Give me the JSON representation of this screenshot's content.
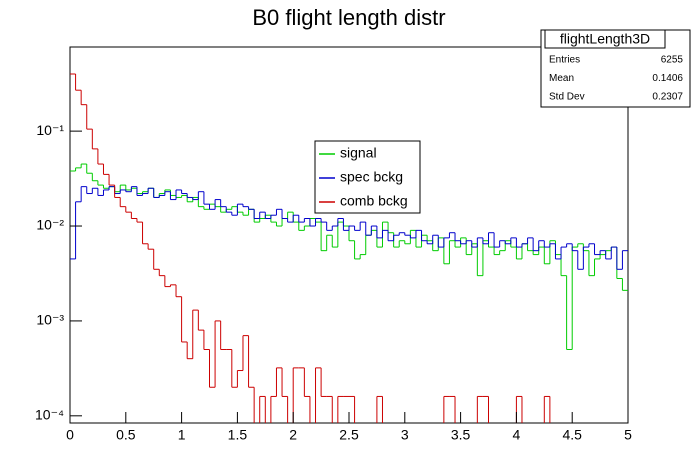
{
  "chart_data": {
    "type": "histogram",
    "title": "B0 flight length distr",
    "log_y": true,
    "grid": false,
    "xlim": [
      0,
      5
    ],
    "ylim": [
      8.4e-05,
      0.77
    ],
    "xticks": [
      0,
      0.5,
      1,
      1.5,
      2,
      2.5,
      3,
      3.5,
      4,
      4.5,
      5
    ],
    "yticks": [
      {
        "value": 0.0001,
        "label": "10⁻⁴"
      },
      {
        "value": 0.001,
        "label": "10⁻³"
      },
      {
        "value": 0.01,
        "label": "10⁻²"
      },
      {
        "value": 0.1,
        "label": "10⁻¹"
      }
    ],
    "bins": [
      0,
      0.05,
      0.1,
      0.15,
      0.2,
      0.25,
      0.3,
      0.35,
      0.4,
      0.45,
      0.5,
      0.55,
      0.6,
      0.65,
      0.7,
      0.75,
      0.8,
      0.85,
      0.9,
      0.95,
      1,
      1.05,
      1.1,
      1.15,
      1.2,
      1.25,
      1.3,
      1.35,
      1.4,
      1.45,
      1.5,
      1.55,
      1.6,
      1.65,
      1.7,
      1.75,
      1.8,
      1.85,
      1.9,
      1.95,
      2,
      2.05,
      2.1,
      2.15,
      2.2,
      2.25,
      2.3,
      2.35,
      2.4,
      2.45,
      2.5,
      2.55,
      2.6,
      2.65,
      2.7,
      2.75,
      2.8,
      2.85,
      2.9,
      2.95,
      3,
      3.05,
      3.1,
      3.15,
      3.2,
      3.25,
      3.3,
      3.35,
      3.4,
      3.45,
      3.5,
      3.55,
      3.6,
      3.65,
      3.7,
      3.75,
      3.8,
      3.85,
      3.9,
      3.95,
      4,
      4.05,
      4.1,
      4.15,
      4.2,
      4.25,
      4.3,
      4.35,
      4.4,
      4.45,
      4.5,
      4.55,
      4.6,
      4.65,
      4.7,
      4.75,
      4.8,
      4.85,
      4.9,
      4.95,
      5
    ],
    "series": [
      {
        "name": "signal",
        "color": "#00cc00",
        "values": [
          0.038,
          0.041,
          0.045,
          0.036,
          0.03,
          0.027,
          0.025,
          0.026,
          0.023,
          0.027,
          0.024,
          0.025,
          0.022,
          0.023,
          0.025,
          0.02,
          0.022,
          0.024,
          0.021,
          0.02,
          0.021,
          0.018,
          0.02,
          0.016,
          0.015,
          0.017,
          0.016,
          0.014,
          0.015,
          0.016,
          0.014,
          0.013,
          0.015,
          0.011,
          0.012,
          0.013,
          0.011,
          0.01,
          0.012,
          0.014,
          0.011,
          0.009,
          0.01,
          0.012,
          0.011,
          0.0055,
          0.008,
          0.006,
          0.011,
          0.01,
          0.007,
          0.0045,
          0.005,
          0.008,
          0.009,
          0.006,
          0.011,
          0.0085,
          0.006,
          0.007,
          0.0065,
          0.009,
          0.006,
          0.008,
          0.007,
          0.0055,
          0.0075,
          0.004,
          0.007,
          0.006,
          0.0075,
          0.005,
          0.0065,
          0.003,
          0.007,
          0.006,
          0.005,
          0.0055,
          0.007,
          0.006,
          0.0045,
          0.0065,
          0.0055,
          0.005,
          0.006,
          0.004,
          0.007,
          0.005,
          0.003,
          0.0005,
          0.006,
          0.0065,
          0.0055,
          0.003,
          0.0045,
          0.005,
          0.0055,
          0.006,
          0.0028,
          0.0021
        ]
      },
      {
        "name": "spec bckg",
        "color": "#0000cc",
        "values": [
          0.0045,
          0.018,
          0.026,
          0.022,
          0.025,
          0.021,
          0.024,
          0.026,
          0.022,
          0.024,
          0.023,
          0.026,
          0.021,
          0.022,
          0.025,
          0.02,
          0.021,
          0.023,
          0.019,
          0.024,
          0.022,
          0.02,
          0.019,
          0.023,
          0.017,
          0.015,
          0.019,
          0.016,
          0.014,
          0.013,
          0.017,
          0.016,
          0.015,
          0.012,
          0.014,
          0.012,
          0.013,
          0.015,
          0.012,
          0.011,
          0.013,
          0.011,
          0.012,
          0.01,
          0.012,
          0.011,
          0.009,
          0.01,
          0.012,
          0.009,
          0.01,
          0.009,
          0.011,
          0.008,
          0.01,
          0.0075,
          0.009,
          0.007,
          0.008,
          0.0085,
          0.008,
          0.0075,
          0.009,
          0.007,
          0.0065,
          0.008,
          0.006,
          0.0075,
          0.0085,
          0.007,
          0.0065,
          0.007,
          0.006,
          0.0075,
          0.0065,
          0.0085,
          0.006,
          0.007,
          0.0065,
          0.0075,
          0.006,
          0.0065,
          0.0075,
          0.0055,
          0.007,
          0.006,
          0.0065,
          0.0045,
          0.006,
          0.0065,
          0.0055,
          0.0035,
          0.006,
          0.0065,
          0.005,
          0.0055,
          0.0045,
          0.006,
          0.0035,
          0.0055
        ]
      },
      {
        "name": "comb bckg",
        "color": "#cc0000",
        "values": [
          0.4,
          0.27,
          0.19,
          0.105,
          0.065,
          0.045,
          0.035,
          0.027,
          0.02,
          0.016,
          0.014,
          0.012,
          0.011,
          0.0065,
          0.0057,
          0.0035,
          0.003,
          0.0023,
          0.0024,
          0.0018,
          0.0006,
          0.0004,
          0.0013,
          0.0008,
          0.0005,
          0.0002,
          0.001,
          0.0005,
          0.0005,
          0.0002,
          0.0003,
          0.0007,
          0.0002,
          0,
          0.00016,
          0,
          0.00016,
          0.00032,
          0.00016,
          0,
          0.00032,
          0.00032,
          0.00016,
          0,
          0.00032,
          0.00016,
          0.00016,
          0,
          0.00016,
          0.00016,
          0.00016,
          0,
          0,
          0,
          0,
          0.00016,
          0,
          0,
          0,
          0,
          0,
          0,
          0,
          0,
          0,
          0,
          0,
          0.00016,
          0.00016,
          0,
          0,
          0,
          0,
          0.00016,
          0.00016,
          0,
          0,
          0,
          0,
          0,
          0.00016,
          0,
          0,
          0,
          0,
          0.00016,
          0,
          0,
          0,
          0,
          0,
          0,
          0,
          0,
          0,
          0,
          0,
          0,
          0,
          0
        ]
      }
    ],
    "stats": {
      "title": "flightLength3D",
      "rows": [
        {
          "label": "Entries",
          "value": 6255
        },
        {
          "label": "Mean",
          "value": 0.1406
        },
        {
          "label": "Std Dev",
          "value": 0.2307
        }
      ]
    }
  }
}
